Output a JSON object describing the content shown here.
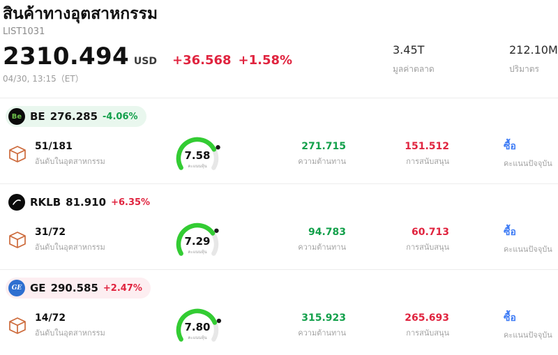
{
  "colors": {
    "red": "#e0243f",
    "green": "#13a04b",
    "blue": "#3d7bf5",
    "gauge_green": "#33cc33"
  },
  "header": {
    "title": "สินค้าทางอุตสาหกรรม",
    "list_id": "LIST1031",
    "price": "2310.494",
    "currency": "USD",
    "change_abs": "+36.568",
    "change_pct": "+1.58%",
    "datetime": "04/30, 13:15（ET）",
    "market_cap": {
      "value": "3.45T",
      "label": "มูลค่าตลาด"
    },
    "volume": {
      "value": "212.10M",
      "label": "ปริมาตร"
    }
  },
  "rows": [
    {
      "ticker": "BE",
      "price": "276.285",
      "change_pct": "-4.06%",
      "trend": "down",
      "tint": "green",
      "rank": "51/181",
      "rank_label": "อันดับในอุตสาหกรรม",
      "score": "7.58",
      "score_label": "คะแนนหุ้น",
      "resistance": "271.715",
      "resistance_label": "ความต้านทาน",
      "support": "151.512",
      "support_label": "การสนับสนุน",
      "signal": "ซื้อ",
      "signal_label": "คะแนนปัจจุบัน"
    },
    {
      "ticker": "RKLB",
      "price": "81.910",
      "change_pct": "+6.35%",
      "trend": "up",
      "tint": "none",
      "rank": "31/72",
      "rank_label": "อันดับในอุตสาหกรรม",
      "score": "7.29",
      "score_label": "คะแนนหุ้น",
      "resistance": "94.783",
      "resistance_label": "ความต้านทาน",
      "support": "60.713",
      "support_label": "การสนับสนุน",
      "signal": "ซื้อ",
      "signal_label": "คะแนนปัจจุบัน"
    },
    {
      "ticker": "GE",
      "price": "290.585",
      "change_pct": "+2.47%",
      "trend": "up",
      "tint": "pink",
      "rank": "14/72",
      "rank_label": "อันดับในอุตสาหกรรม",
      "score": "7.80",
      "score_label": "คะแนนหุ้น",
      "resistance": "315.923",
      "resistance_label": "ความต้านทาน",
      "support": "265.693",
      "support_label": "การสนับสนุน",
      "signal": "ซื้อ",
      "signal_label": "คะแนนปัจจุบัน"
    }
  ]
}
